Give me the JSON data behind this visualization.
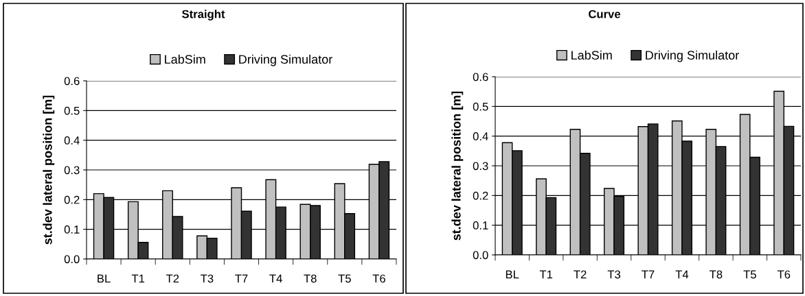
{
  "chart_data": [
    {
      "type": "bar",
      "title": "Straight",
      "ylabel": "st.dev lateral position [m]",
      "categories": [
        "BL",
        "T1",
        "T2",
        "T3",
        "T7",
        "T4",
        "T8",
        "T5",
        "T6"
      ],
      "series": [
        {
          "name": "LabSim",
          "color": "#c0c0c0",
          "values": [
            0.22,
            0.193,
            0.23,
            0.078,
            0.24,
            0.267,
            0.184,
            0.254,
            0.319
          ]
        },
        {
          "name": "Driving Simulator",
          "color": "#333333",
          "values": [
            0.207,
            0.056,
            0.143,
            0.07,
            0.161,
            0.175,
            0.18,
            0.153,
            0.328
          ]
        }
      ],
      "ylim": [
        0,
        0.6
      ],
      "yticks": [
        {
          "value": 0,
          "label": "0.0"
        },
        0.1,
        0.2,
        0.3,
        0.4,
        0.5,
        0.6
      ],
      "grid": "y",
      "legend": "top"
    },
    {
      "type": "bar",
      "title": "Curve",
      "ylabel": "st.dev lateral position [m]",
      "categories": [
        "BL",
        "T1",
        "T2",
        "T3",
        "T7",
        "T4",
        "T8",
        "T5",
        "T6"
      ],
      "series": [
        {
          "name": "LabSim",
          "color": "#c0c0c0",
          "values": [
            0.378,
            0.256,
            0.423,
            0.224,
            0.432,
            0.451,
            0.423,
            0.473,
            0.551
          ]
        },
        {
          "name": "Driving Simulator",
          "color": "#333333",
          "values": [
            0.351,
            0.193,
            0.342,
            0.197,
            0.441,
            0.383,
            0.365,
            0.329,
            0.433
          ]
        }
      ],
      "ylim": [
        0,
        0.6
      ],
      "yticks": [
        {
          "value": 0,
          "label": "0.0"
        },
        0.1,
        0.2,
        0.3,
        0.4,
        0.5,
        0.6
      ],
      "grid": "y",
      "legend": "top"
    }
  ]
}
